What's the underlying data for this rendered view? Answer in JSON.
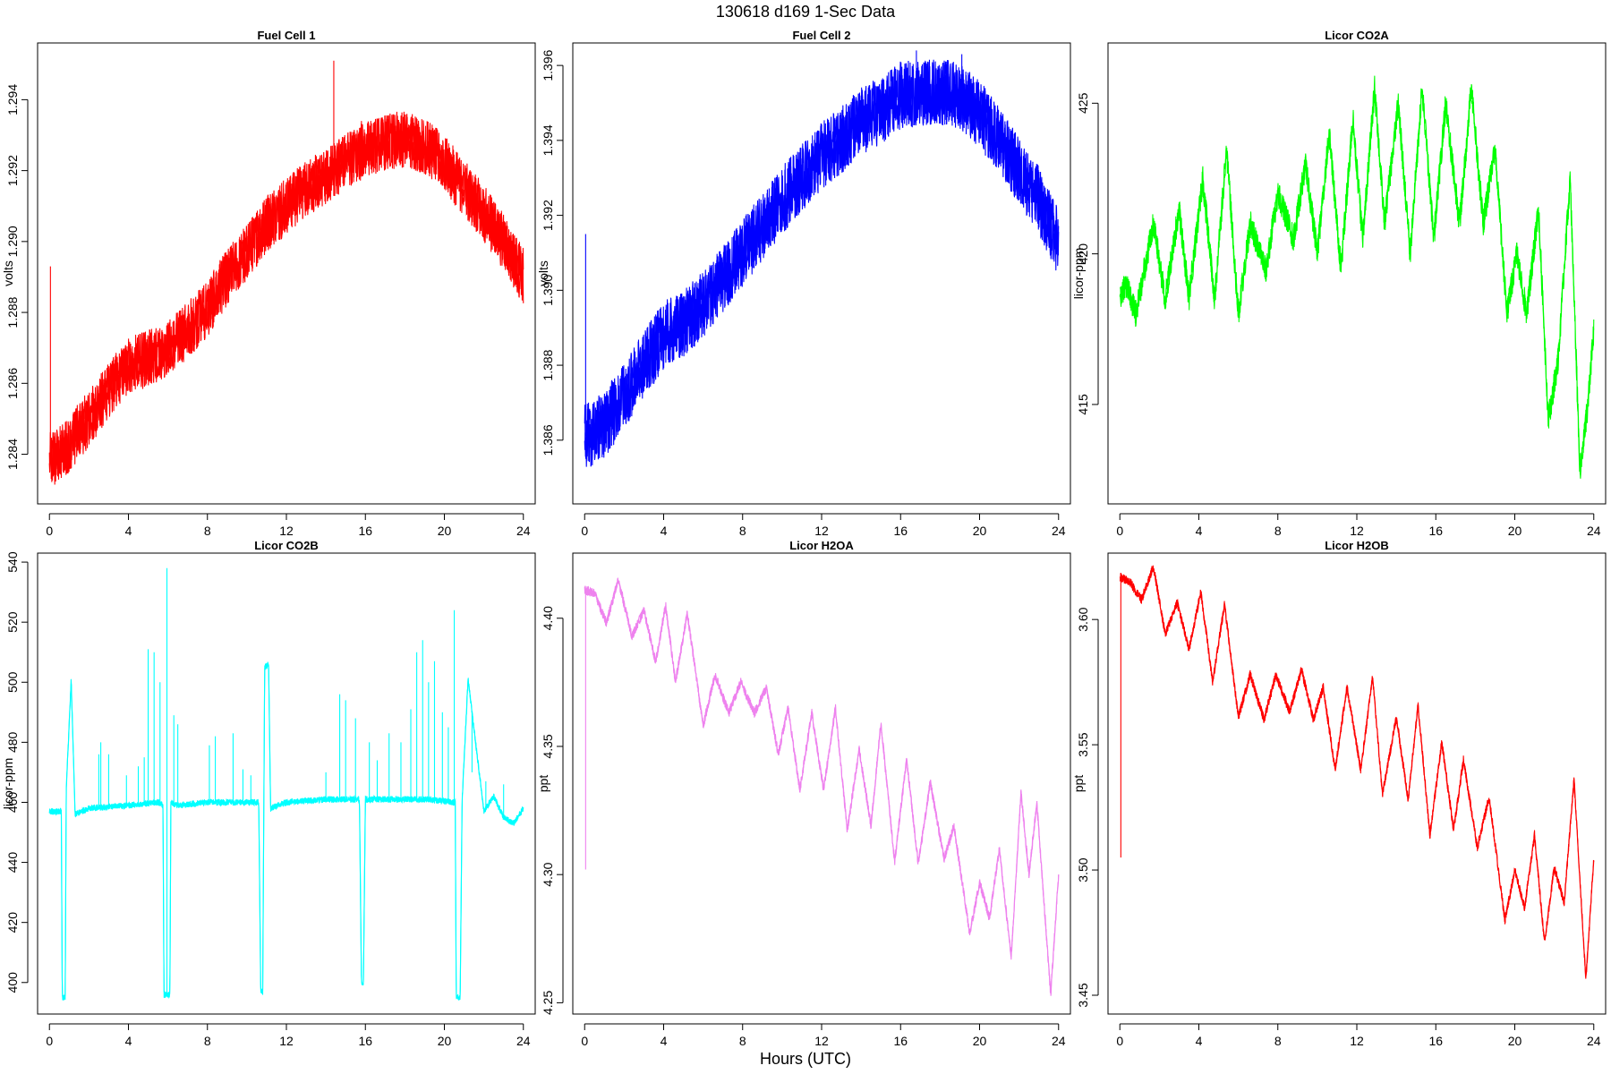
{
  "figure": {
    "title": "130618   d169   1-Sec Data",
    "xlabel": "Hours (UTC)"
  },
  "chart_data": [
    {
      "type": "line",
      "title": "Fuel Cell 1",
      "ylabel": "volts",
      "color": "#ff0000",
      "noise": 0.0008,
      "xlim": [
        -0.6,
        24.6
      ],
      "ylim": [
        1.2826,
        1.2956
      ],
      "xticks": [
        0,
        4,
        8,
        12,
        16,
        20,
        24
      ],
      "yticks": [
        1.284,
        1.286,
        1.288,
        1.29,
        1.292,
        1.294
      ],
      "ytick_labels": [
        "1.284",
        "1.286",
        "1.288",
        "1.290",
        "1.292",
        "1.294"
      ],
      "x": [
        0,
        0.5,
        1,
        2,
        3,
        4,
        5,
        6,
        7,
        8,
        9,
        10,
        11,
        12,
        13,
        14,
        15,
        16,
        17,
        18,
        19,
        20,
        21,
        22,
        23,
        23.5,
        24
      ],
      "y": [
        1.2838,
        1.284,
        1.2843,
        1.285,
        1.2858,
        1.2865,
        1.2867,
        1.287,
        1.2875,
        1.2881,
        1.289,
        1.2897,
        1.2905,
        1.291,
        1.2915,
        1.2918,
        1.2923,
        1.2926,
        1.2928,
        1.2929,
        1.2927,
        1.2922,
        1.2915,
        1.2908,
        1.29,
        1.2895,
        1.289
      ],
      "spikes": [
        {
          "x": 0.05,
          "y": 1.2893
        },
        {
          "x": 14.4,
          "y": 1.2951
        },
        {
          "x": 10.3,
          "y": 1.2903
        },
        {
          "x": 15.8,
          "y": 1.2934
        }
      ]
    },
    {
      "type": "line",
      "title": "Fuel Cell 2",
      "ylabel": "volts",
      "color": "#0000ff",
      "noise": 0.0009,
      "xlim": [
        -0.6,
        24.6
      ],
      "ylim": [
        1.3843,
        1.3966
      ],
      "xticks": [
        0,
        4,
        8,
        12,
        16,
        20,
        24
      ],
      "yticks": [
        1.386,
        1.388,
        1.39,
        1.392,
        1.394,
        1.396
      ],
      "ytick_labels": [
        "1.386",
        "1.388",
        "1.390",
        "1.392",
        "1.394",
        "1.396"
      ],
      "x": [
        0,
        0.5,
        1,
        2,
        3,
        4,
        5,
        6,
        7,
        8,
        9,
        10,
        11,
        12,
        13,
        14,
        15,
        16,
        17,
        18,
        19,
        20,
        21,
        22,
        23,
        23.5,
        24
      ],
      "y": [
        1.3861,
        1.3862,
        1.3864,
        1.3872,
        1.388,
        1.3888,
        1.3891,
        1.3896,
        1.3903,
        1.391,
        1.3917,
        1.3924,
        1.393,
        1.3936,
        1.394,
        1.3945,
        1.3948,
        1.3952,
        1.3953,
        1.3953,
        1.3952,
        1.3947,
        1.394,
        1.3932,
        1.3924,
        1.3918,
        1.3913
      ],
      "spikes": [
        {
          "x": 0.05,
          "y": 1.3915
        },
        {
          "x": 16.8,
          "y": 1.3964
        },
        {
          "x": 19.1,
          "y": 1.3963
        }
      ]
    },
    {
      "type": "line",
      "title": "Licor CO2A",
      "ylabel": "licor-ppm",
      "color": "#00ff00",
      "noise": 0.45,
      "xlim": [
        -0.6,
        24.6
      ],
      "ylim": [
        411.7,
        427.0
      ],
      "xticks": [
        0,
        4,
        8,
        12,
        16,
        20,
        24
      ],
      "yticks": [
        415,
        420,
        425
      ],
      "ytick_labels": [
        "415",
        "420",
        "425"
      ],
      "x": [
        0,
        0.3,
        0.8,
        1.7,
        2.3,
        3.0,
        3.5,
        4.2,
        4.8,
        5.4,
        6.0,
        6.6,
        7.4,
        8.0,
        8.8,
        9.4,
        10.0,
        10.6,
        11.2,
        11.8,
        12.3,
        12.9,
        13.4,
        14.1,
        14.7,
        15.3,
        15.9,
        16.5,
        17.2,
        17.8,
        18.4,
        19.0,
        19.6,
        20.1,
        20.6,
        21.2,
        21.7,
        22.2,
        22.8,
        23.3,
        23.7,
        24.0
      ],
      "y": [
        418.5,
        419.0,
        418.0,
        421.0,
        418.5,
        421.5,
        418.5,
        422.5,
        418.5,
        423.5,
        418.0,
        421.0,
        419.5,
        422.0,
        420.5,
        423.0,
        420.0,
        424.0,
        419.5,
        424.5,
        420.5,
        425.5,
        421.0,
        425.0,
        420.0,
        425.5,
        420.5,
        425.0,
        421.0,
        425.5,
        421.0,
        423.5,
        418.0,
        420.0,
        418.0,
        421.5,
        414.5,
        416.5,
        422.5,
        412.8,
        415.0,
        417.5
      ]
    },
    {
      "type": "line",
      "title": "Licor CO2B",
      "ylabel": "licor-ppm",
      "color": "#00ffff",
      "noise": 1.0,
      "xlim": [
        -0.6,
        24.6
      ],
      "ylim": [
        389.5,
        543.0
      ],
      "xticks": [
        0,
        4,
        8,
        12,
        16,
        20,
        24
      ],
      "yticks": [
        400,
        420,
        440,
        460,
        480,
        500,
        520,
        540
      ],
      "ytick_labels": [
        "400",
        "420",
        "440",
        "460",
        "480",
        "500",
        "520",
        "540"
      ],
      "x": [
        0,
        0.5,
        0.6,
        0.65,
        0.8,
        0.85,
        1.1,
        1.3,
        2,
        4,
        5.5,
        5.75,
        5.8,
        6.1,
        6.15,
        6.5,
        8,
        10.6,
        10.7,
        10.8,
        10.9,
        11.1,
        11.2,
        12,
        14,
        15.7,
        15.8,
        15.9,
        16,
        17,
        19,
        20.55,
        20.6,
        20.8,
        20.9,
        21.2,
        22,
        22.5,
        23,
        23.5,
        24
      ],
      "y": [
        457,
        457,
        457,
        395,
        395,
        464,
        501,
        456,
        458,
        459,
        460,
        459,
        396,
        396,
        460,
        459,
        460,
        460,
        397,
        397,
        505,
        506,
        458,
        460,
        461,
        461,
        400,
        400,
        461,
        461,
        461,
        460,
        395,
        395,
        461,
        501,
        457,
        462,
        455,
        453,
        458
      ],
      "spikes": [
        {
          "x": 1.1,
          "y": 501
        },
        {
          "x": 2.5,
          "y": 476
        },
        {
          "x": 2.6,
          "y": 480
        },
        {
          "x": 3.0,
          "y": 476
        },
        {
          "x": 3.9,
          "y": 469
        },
        {
          "x": 4.5,
          "y": 472
        },
        {
          "x": 4.8,
          "y": 475
        },
        {
          "x": 5.0,
          "y": 511
        },
        {
          "x": 5.3,
          "y": 510
        },
        {
          "x": 5.6,
          "y": 500
        },
        {
          "x": 5.95,
          "y": 538
        },
        {
          "x": 6.3,
          "y": 489
        },
        {
          "x": 6.5,
          "y": 486
        },
        {
          "x": 8.1,
          "y": 479
        },
        {
          "x": 8.4,
          "y": 482
        },
        {
          "x": 9.3,
          "y": 483
        },
        {
          "x": 9.8,
          "y": 471
        },
        {
          "x": 10.2,
          "y": 469
        },
        {
          "x": 14.0,
          "y": 470
        },
        {
          "x": 14.7,
          "y": 496
        },
        {
          "x": 15.0,
          "y": 494
        },
        {
          "x": 15.5,
          "y": 488
        },
        {
          "x": 16.2,
          "y": 480
        },
        {
          "x": 16.6,
          "y": 474
        },
        {
          "x": 17.2,
          "y": 483
        },
        {
          "x": 17.8,
          "y": 480
        },
        {
          "x": 18.3,
          "y": 491
        },
        {
          "x": 18.6,
          "y": 510
        },
        {
          "x": 18.9,
          "y": 514
        },
        {
          "x": 19.2,
          "y": 500
        },
        {
          "x": 19.5,
          "y": 507
        },
        {
          "x": 19.9,
          "y": 490
        },
        {
          "x": 20.2,
          "y": 485
        },
        {
          "x": 20.5,
          "y": 524
        },
        {
          "x": 21.4,
          "y": 470
        },
        {
          "x": 22.1,
          "y": 467
        },
        {
          "x": 23.0,
          "y": 466
        }
      ]
    },
    {
      "type": "line",
      "title": "Licor H2OA",
      "ylabel": "ppt",
      "color": "#ee82ee",
      "noise": 0.0018,
      "xlim": [
        -0.6,
        24.6
      ],
      "ylim": [
        4.2456,
        4.4254
      ],
      "xticks": [
        0,
        4,
        8,
        12,
        16,
        20,
        24
      ],
      "yticks": [
        4.25,
        4.3,
        4.35,
        4.4
      ],
      "ytick_labels": [
        "4.25",
        "4.30",
        "4.35",
        "4.40"
      ],
      "x": [
        0,
        0.5,
        1.1,
        1.7,
        2.4,
        3.0,
        3.6,
        4.1,
        4.6,
        5.2,
        6.0,
        6.6,
        7.3,
        7.9,
        8.6,
        9.2,
        9.8,
        10.3,
        10.9,
        11.5,
        12.1,
        12.7,
        13.3,
        13.9,
        14.5,
        15.0,
        15.7,
        16.3,
        16.9,
        17.5,
        18.2,
        18.7,
        19.5,
        20.0,
        20.5,
        21.0,
        21.6,
        22.1,
        22.5,
        22.9,
        23.6,
        24.0
      ],
      "y": [
        4.411,
        4.41,
        4.398,
        4.415,
        4.393,
        4.403,
        4.383,
        4.405,
        4.375,
        4.402,
        4.358,
        4.378,
        4.363,
        4.375,
        4.363,
        4.373,
        4.347,
        4.365,
        4.333,
        4.363,
        4.333,
        4.365,
        4.317,
        4.349,
        4.319,
        4.359,
        4.305,
        4.345,
        4.304,
        4.336,
        4.306,
        4.319,
        4.277,
        4.297,
        4.283,
        4.31,
        4.268,
        4.332,
        4.3,
        4.328,
        4.253,
        4.3
      ],
      "spikes": [
        {
          "x": 0.05,
          "y": 4.302
        }
      ]
    },
    {
      "type": "line",
      "title": "Licor H2OB",
      "ylabel": "ppt",
      "color": "#ff0000",
      "noise": 0.0018,
      "xlim": [
        -0.6,
        24.6
      ],
      "ylim": [
        3.4425,
        3.6265
      ],
      "xticks": [
        0,
        4,
        8,
        12,
        16,
        20,
        24
      ],
      "yticks": [
        3.45,
        3.5,
        3.55,
        3.6
      ],
      "ytick_labels": [
        "3.45",
        "3.50",
        "3.55",
        "3.60"
      ],
      "x": [
        0,
        0.5,
        1.1,
        1.7,
        2.3,
        2.9,
        3.5,
        4.1,
        4.7,
        5.3,
        6.0,
        6.6,
        7.3,
        7.9,
        8.6,
        9.2,
        9.8,
        10.3,
        10.9,
        11.5,
        12.2,
        12.8,
        13.3,
        14.0,
        14.6,
        15.1,
        15.7,
        16.3,
        16.9,
        17.4,
        18.1,
        18.7,
        19.5,
        20.0,
        20.5,
        21.0,
        21.5,
        22.0,
        22.5,
        23.0,
        23.6,
        24.0
      ],
      "y": [
        3.617,
        3.615,
        3.608,
        3.621,
        3.594,
        3.607,
        3.588,
        3.611,
        3.575,
        3.606,
        3.561,
        3.578,
        3.56,
        3.578,
        3.563,
        3.58,
        3.56,
        3.573,
        3.54,
        3.573,
        3.54,
        3.577,
        3.53,
        3.561,
        3.528,
        3.566,
        3.514,
        3.551,
        3.516,
        3.544,
        3.509,
        3.529,
        3.48,
        3.5,
        3.485,
        3.514,
        3.471,
        3.501,
        3.487,
        3.536,
        3.456,
        3.505
      ],
      "spikes": [
        {
          "x": 0.05,
          "y": 3.505
        }
      ]
    }
  ]
}
